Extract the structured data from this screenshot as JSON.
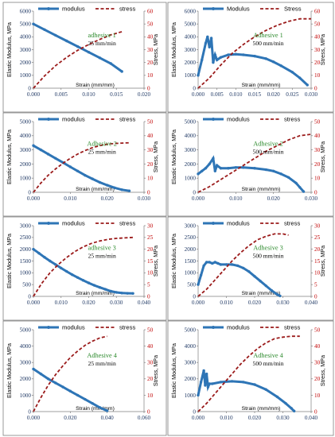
{
  "colors": {
    "modulus": "#2e75b6",
    "stress": "#9b1b1b",
    "left_ticks": "#1f3864",
    "right_ticks": "#c00000",
    "annotation": "#2e8b2e"
  },
  "legend": {
    "modulus": "modulus",
    "stress": "stress"
  },
  "chart_data": [
    {
      "type": "line",
      "title": "adhesive 1",
      "subtitle": "25 mm/min",
      "legend_labels": [
        "modulus",
        "stress"
      ],
      "xlabel": "Strain (mm/mm)",
      "ylabel": "Elastic Modulus, MPa",
      "y2label": "Stress, MPa",
      "xlim": [
        0,
        0.02
      ],
      "xticks": [
        "0.000",
        "0.005",
        "0.010",
        "0.015",
        "0.020"
      ],
      "ylim": [
        0,
        6000
      ],
      "yticks": [
        "0",
        "1000",
        "2000",
        "3000",
        "4000",
        "5000",
        "6000"
      ],
      "y2lim": [
        0,
        60
      ],
      "y2ticks": [
        "0",
        "10",
        "20",
        "30",
        "40",
        "50",
        "60"
      ],
      "series": [
        {
          "name": "modulus",
          "axis": "left",
          "style": "markers",
          "x": [
            0.0,
            0.002,
            0.004,
            0.006,
            0.008,
            0.01,
            0.012,
            0.014,
            0.016
          ],
          "y": [
            5000,
            4560,
            4120,
            3680,
            3240,
            2800,
            2360,
            1920,
            1300
          ]
        },
        {
          "name": "stress",
          "axis": "right",
          "style": "dashed",
          "x": [
            0.0,
            0.002,
            0.004,
            0.006,
            0.008,
            0.01,
            0.012,
            0.014,
            0.016
          ],
          "y": [
            0,
            9.5,
            17.5,
            24,
            29.5,
            34,
            38,
            41.5,
            44
          ]
        }
      ]
    },
    {
      "type": "line",
      "title": "Adhesive 1",
      "subtitle": "500 mm/min",
      "legend_labels": [
        "Modulus",
        "Stress"
      ],
      "xlabel": "Strain (mm/mm)",
      "ylabel": "Elastic Modulus, MPa",
      "y2label": "Stress, MPa",
      "xlim": [
        0,
        0.03
      ],
      "xticks": [
        "0.000",
        "0.005",
        "0.010",
        "0.015",
        "0.020",
        "0.025",
        "0.030"
      ],
      "ylim": [
        0,
        6000
      ],
      "yticks": [
        "0",
        "1000",
        "2000",
        "3000",
        "4000",
        "5000",
        "6000"
      ],
      "y2lim": [
        0,
        60
      ],
      "y2ticks": [
        "0",
        "10",
        "20",
        "30",
        "40",
        "50",
        "60"
      ],
      "series": [
        {
          "name": "Modulus",
          "axis": "left",
          "style": "markers",
          "x": [
            0.0,
            0.001,
            0.002,
            0.0025,
            0.003,
            0.0035,
            0.004,
            0.0045,
            0.005,
            0.006,
            0.008,
            0.01,
            0.012,
            0.015,
            0.018,
            0.02,
            0.022,
            0.025,
            0.027,
            0.029
          ],
          "y": [
            1000,
            2200,
            3500,
            4000,
            3200,
            3900,
            2000,
            2600,
            2200,
            2400,
            2600,
            2650,
            2600,
            2500,
            2300,
            2050,
            1750,
            1250,
            800,
            250
          ]
        },
        {
          "name": "Stress",
          "axis": "right",
          "style": "dashed",
          "x": [
            0.0,
            0.003,
            0.006,
            0.009,
            0.012,
            0.015,
            0.018,
            0.021,
            0.024,
            0.027,
            0.03
          ],
          "y": [
            0,
            8,
            18,
            27,
            34,
            40,
            45,
            49,
            52,
            54,
            54
          ]
        }
      ]
    },
    {
      "type": "line",
      "title": "Adhesive 2",
      "subtitle": "25 mm/min",
      "legend_labels": [
        "modulus",
        "stress"
      ],
      "xlabel": "Strain (mm/mm)",
      "ylabel": "Elastic Modulus, MPa",
      "y2label": "Stress, MPa",
      "xlim": [
        0,
        0.03
      ],
      "xticks": [
        "0.000",
        "0.010",
        "0.020",
        "0.030"
      ],
      "ylim": [
        0,
        5000
      ],
      "yticks": [
        "0",
        "1000",
        "2000",
        "3000",
        "4000",
        "5000"
      ],
      "y2lim": [
        0,
        50
      ],
      "y2ticks": [
        "0",
        "10",
        "20",
        "30",
        "40",
        "50"
      ],
      "series": [
        {
          "name": "modulus",
          "axis": "left",
          "style": "markers",
          "x": [
            0.0,
            0.002,
            0.004,
            0.006,
            0.008,
            0.01,
            0.012,
            0.014,
            0.016,
            0.018,
            0.02,
            0.022,
            0.024,
            0.026
          ],
          "y": [
            3300,
            3000,
            2700,
            2400,
            2100,
            1800,
            1500,
            1200,
            950,
            700,
            500,
            320,
            180,
            100
          ]
        },
        {
          "name": "stress",
          "axis": "right",
          "style": "dashed",
          "x": [
            0.0,
            0.002,
            0.004,
            0.006,
            0.008,
            0.01,
            0.012,
            0.014,
            0.016,
            0.018,
            0.02,
            0.022,
            0.024,
            0.026
          ],
          "y": [
            0,
            6.5,
            12,
            16.5,
            20.5,
            24,
            27,
            29.5,
            31.5,
            33,
            34,
            34.5,
            34.8,
            35
          ]
        }
      ]
    },
    {
      "type": "line",
      "title": "Adhesive 2",
      "subtitle": "500 mm/min",
      "legend_labels": [
        "modulus",
        "stress"
      ],
      "xlabel": "Strain (mm/mm)",
      "ylabel": "Elastic Modulus, MPa",
      "y2label": "Stress, MPa",
      "xlim": [
        0,
        0.03
      ],
      "xticks": [
        "0.000",
        "0.010",
        "0.020",
        "0.030"
      ],
      "ylim": [
        0,
        5000
      ],
      "yticks": [
        "0",
        "1000",
        "2000",
        "3000",
        "4000",
        "5000"
      ],
      "y2lim": [
        0,
        50
      ],
      "y2ticks": [
        "0",
        "10",
        "20",
        "30",
        "40",
        "50"
      ],
      "series": [
        {
          "name": "modulus",
          "axis": "left",
          "style": "markers",
          "x": [
            0.0,
            0.001,
            0.002,
            0.003,
            0.004,
            0.0045,
            0.005,
            0.006,
            0.008,
            0.01,
            0.012,
            0.015,
            0.018,
            0.02,
            0.022,
            0.024,
            0.026,
            0.027,
            0.028
          ],
          "y": [
            1300,
            1500,
            1700,
            2000,
            2400,
            1500,
            1900,
            1700,
            1700,
            1750,
            1750,
            1700,
            1600,
            1500,
            1300,
            1050,
            650,
            350,
            50
          ]
        },
        {
          "name": "stress",
          "axis": "right",
          "style": "dashed",
          "x": [
            0.0,
            0.003,
            0.006,
            0.009,
            0.012,
            0.015,
            0.018,
            0.021,
            0.024,
            0.027,
            0.03
          ],
          "y": [
            0,
            4,
            9,
            14,
            19,
            24,
            29,
            33,
            37,
            40,
            41
          ]
        }
      ]
    },
    {
      "type": "line",
      "title": "adhesive 3",
      "subtitle": "25 mm/min",
      "legend_labels": [
        "modulus",
        "stress"
      ],
      "xlabel": "Strain (mm/mm)",
      "ylabel": "Elastic Modulus, MPa",
      "y2label": "Stress, MPa",
      "xlim": [
        0,
        0.04
      ],
      "xticks": [
        "0.000",
        "0.010",
        "0.020",
        "0.030",
        "0.040"
      ],
      "ylim": [
        0,
        3000
      ],
      "yticks": [
        "0",
        "500",
        "1000",
        "1500",
        "2000",
        "2500",
        "3000"
      ],
      "y2lim": [
        0,
        30
      ],
      "y2ticks": [
        "0",
        "5",
        "10",
        "15",
        "20",
        "25",
        "30"
      ],
      "series": [
        {
          "name": "modulus",
          "axis": "left",
          "style": "markers",
          "x": [
            0.0,
            0.002,
            0.004,
            0.006,
            0.008,
            0.01,
            0.012,
            0.014,
            0.016,
            0.018,
            0.02,
            0.022,
            0.024,
            0.026,
            0.028,
            0.03,
            0.032,
            0.034,
            0.036
          ],
          "y": [
            2000,
            1830,
            1660,
            1500,
            1350,
            1200,
            1060,
            920,
            800,
            680,
            570,
            470,
            380,
            300,
            220,
            170,
            140,
            130,
            125
          ]
        },
        {
          "name": "stress",
          "axis": "right",
          "style": "dashed",
          "x": [
            0.0,
            0.003,
            0.006,
            0.009,
            0.012,
            0.015,
            0.018,
            0.021,
            0.024,
            0.027,
            0.03,
            0.033,
            0.036
          ],
          "y": [
            0,
            5.5,
            10,
            13.5,
            16.5,
            19,
            21,
            22.5,
            23.5,
            24.2,
            24.6,
            24.8,
            25
          ]
        }
      ]
    },
    {
      "type": "line",
      "title": "Adhesive 3",
      "subtitle": "500 mm/min",
      "legend_labels": [
        "modulus",
        "stress"
      ],
      "xlabel": "Strain (mm/mm)",
      "ylabel": "Elastic Modulus, MPa",
      "y2label": "Stress, MPa",
      "xlim": [
        0,
        0.04
      ],
      "xticks": [
        "0.000",
        "0.010",
        "0.020",
        "0.030",
        "0.040"
      ],
      "ylim": [
        0,
        3000
      ],
      "yticks": [
        "0",
        "500",
        "1000",
        "1500",
        "2000",
        "2500",
        "3000"
      ],
      "y2lim": [
        0,
        30
      ],
      "y2ticks": [
        "0",
        "5",
        "10",
        "15",
        "20",
        "25",
        "30"
      ],
      "series": [
        {
          "name": "modulus",
          "axis": "left",
          "style": "markers",
          "x": [
            0.0,
            0.001,
            0.002,
            0.003,
            0.004,
            0.005,
            0.006,
            0.007,
            0.008,
            0.01,
            0.012,
            0.014,
            0.016,
            0.018,
            0.02,
            0.022,
            0.024,
            0.026,
            0.028,
            0.029
          ],
          "y": [
            500,
            900,
            1300,
            1450,
            1450,
            1400,
            1450,
            1400,
            1350,
            1350,
            1350,
            1300,
            1200,
            1050,
            850,
            650,
            450,
            250,
            80,
            20
          ]
        },
        {
          "name": "stress",
          "axis": "right",
          "style": "dashed",
          "x": [
            0.0,
            0.003,
            0.006,
            0.009,
            0.012,
            0.015,
            0.018,
            0.021,
            0.024,
            0.027,
            0.03,
            0.032
          ],
          "y": [
            0,
            3,
            7,
            11,
            15,
            18.5,
            21.5,
            24,
            25.5,
            26.5,
            26.5,
            26
          ]
        }
      ]
    },
    {
      "type": "line",
      "title": "Adhesive 4",
      "subtitle": "25 mm/min",
      "legend_labels": [
        "modulus",
        "stress"
      ],
      "xlabel": "Strain (mm/mm)",
      "ylabel": "Elastic Modulus, MPa",
      "y2label": "Stress, MPa",
      "xlim": [
        0,
        0.06
      ],
      "xticks": [
        "0.000",
        "0.020",
        "0.040",
        "0.060"
      ],
      "ylim": [
        0,
        5000
      ],
      "yticks": [
        "0",
        "1000",
        "2000",
        "3000",
        "4000",
        "5000"
      ],
      "y2lim": [
        0,
        50
      ],
      "y2ticks": [
        "0",
        "10",
        "20",
        "30",
        "40",
        "50"
      ],
      "series": [
        {
          "name": "modulus",
          "axis": "left",
          "style": "markers",
          "x": [
            0.0,
            0.004,
            0.008,
            0.012,
            0.016,
            0.02,
            0.024,
            0.028,
            0.032,
            0.036,
            0.04
          ],
          "y": [
            2600,
            2300,
            2000,
            1750,
            1500,
            1250,
            1000,
            750,
            500,
            250,
            50
          ]
        },
        {
          "name": "stress",
          "axis": "right",
          "style": "dashed",
          "x": [
            0.0,
            0.004,
            0.008,
            0.012,
            0.016,
            0.02,
            0.024,
            0.028,
            0.032,
            0.036,
            0.04
          ],
          "y": [
            0,
            8.5,
            16,
            22.5,
            28,
            33,
            37,
            40.5,
            43,
            45,
            46
          ]
        }
      ]
    },
    {
      "type": "line",
      "title": "Adhesive 4",
      "subtitle": "500 mm/min",
      "legend_labels": [
        "modulus",
        "stress"
      ],
      "xlabel": "Strain (mm/mm)",
      "ylabel": "Elastic Modulus, MPa",
      "y2label": "Stress, MPa",
      "xlim": [
        0,
        0.04
      ],
      "xticks": [
        "0.000",
        "0.010",
        "0.020",
        "0.030",
        "0.040"
      ],
      "ylim": [
        0,
        5000
      ],
      "yticks": [
        "0",
        "1000",
        "2000",
        "3000",
        "4000",
        "5000"
      ],
      "y2lim": [
        0,
        50
      ],
      "y2ticks": [
        "0",
        "10",
        "20",
        "30",
        "40",
        "50"
      ],
      "series": [
        {
          "name": "modulus",
          "axis": "left",
          "style": "markers",
          "x": [
            0.0,
            0.001,
            0.002,
            0.0025,
            0.003,
            0.0035,
            0.004,
            0.005,
            0.008,
            0.012,
            0.016,
            0.02,
            0.024,
            0.028,
            0.031,
            0.033,
            0.034
          ],
          "y": [
            1000,
            1800,
            2500,
            1600,
            2300,
            1500,
            1700,
            1700,
            1800,
            1850,
            1800,
            1650,
            1350,
            900,
            500,
            200,
            30
          ]
        },
        {
          "name": "stress",
          "axis": "right",
          "style": "dashed",
          "x": [
            0.0,
            0.003,
            0.006,
            0.009,
            0.012,
            0.015,
            0.018,
            0.021,
            0.024,
            0.027,
            0.03,
            0.033,
            0.036
          ],
          "y": [
            0,
            5,
            11,
            17,
            23,
            29,
            34,
            38.5,
            42,
            44.5,
            45.5,
            46,
            46
          ]
        }
      ]
    }
  ]
}
